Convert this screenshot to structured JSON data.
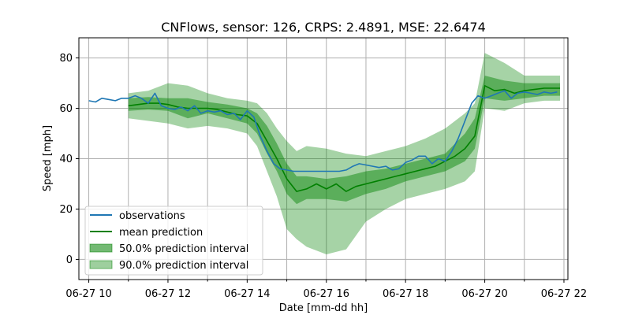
{
  "chart_data": {
    "type": "line",
    "title": "CNFlows, sensor: 126, CRPS: 2.4891, MSE: 22.6474",
    "xlabel": "Date [mm-dd hh]",
    "ylabel": "Speed [mph]",
    "xlim": [
      9.75,
      22.1
    ],
    "ylim": [
      -8,
      88
    ],
    "x_ticks": [
      {
        "value": 10,
        "label": "06-27 10"
      },
      {
        "value": 12,
        "label": "06-27 12"
      },
      {
        "value": 14,
        "label": "06-27 14"
      },
      {
        "value": 16,
        "label": "06-27 16"
      },
      {
        "value": 18,
        "label": "06-27 18"
      },
      {
        "value": 20,
        "label": "06-27 20"
      },
      {
        "value": 22,
        "label": "06-27 22"
      }
    ],
    "x_minor_gridlines": [
      11,
      13,
      15,
      17,
      19,
      21
    ],
    "y_ticks": [
      {
        "value": 0,
        "label": "0"
      },
      {
        "value": 20,
        "label": "20"
      },
      {
        "value": 40,
        "label": "40"
      },
      {
        "value": 60,
        "label": "60"
      },
      {
        "value": 80,
        "label": "80"
      }
    ],
    "grid": true,
    "legend_position": "lower-left",
    "colors": {
      "observations": "#1f77b4",
      "mean": "#008000",
      "band": "#008000"
    },
    "legend": [
      {
        "key": "observations",
        "label": "observations",
        "kind": "line"
      },
      {
        "key": "mean",
        "label": "mean prediction",
        "kind": "line"
      },
      {
        "key": "band50",
        "label": "50.0% prediction interval",
        "kind": "patch"
      },
      {
        "key": "band90",
        "label": "90.0% prediction interval",
        "kind": "patch"
      }
    ],
    "observations": {
      "x": [
        10.0,
        10.17,
        10.33,
        10.5,
        10.67,
        10.83,
        11.0,
        11.17,
        11.33,
        11.5,
        11.67,
        11.83,
        12.0,
        12.17,
        12.33,
        12.5,
        12.67,
        12.83,
        13.0,
        13.17,
        13.33,
        13.5,
        13.67,
        13.83,
        14.0,
        14.17,
        14.33,
        14.5,
        14.67,
        14.83,
        15.0,
        15.17,
        15.33,
        15.5,
        15.67,
        15.83,
        16.0,
        16.17,
        16.33,
        16.5,
        16.67,
        16.83,
        17.0,
        17.17,
        17.33,
        17.5,
        17.67,
        17.83,
        18.0,
        18.17,
        18.33,
        18.5,
        18.67,
        18.83,
        19.0,
        19.17,
        19.33,
        19.5,
        19.67,
        19.83,
        20.0,
        20.17,
        20.33,
        20.5,
        20.67,
        20.83,
        21.0,
        21.17,
        21.33,
        21.5,
        21.67,
        21.83
      ],
      "y": [
        63,
        62.5,
        64,
        63.5,
        63,
        64,
        64,
        65,
        64,
        62,
        66,
        61,
        60,
        59.5,
        60.5,
        59,
        61,
        58,
        59,
        58.5,
        59,
        57.5,
        58,
        55.5,
        59,
        56.5,
        49,
        43,
        38,
        36,
        35.5,
        35,
        35,
        35,
        35,
        35,
        35,
        35,
        35,
        35.5,
        37,
        38,
        37.5,
        37,
        36.5,
        37,
        35.5,
        36,
        38.5,
        39.5,
        41,
        41,
        38,
        40,
        39,
        43,
        48,
        55,
        62,
        65,
        64,
        65,
        66,
        67,
        64,
        66,
        66.5,
        66,
        65.5,
        66.5,
        66,
        66.5
      ]
    },
    "mean_prediction": {
      "x": [
        11.0,
        11.25,
        11.5,
        11.75,
        12.0,
        12.25,
        12.5,
        12.75,
        13.0,
        13.25,
        13.5,
        13.75,
        14.0,
        14.25,
        14.5,
        14.75,
        15.0,
        15.25,
        15.5,
        15.75,
        16.0,
        16.25,
        16.5,
        16.75,
        17.0,
        17.25,
        17.5,
        17.75,
        18.0,
        18.25,
        18.5,
        18.75,
        19.0,
        19.25,
        19.5,
        19.75,
        20.0,
        20.25,
        20.5,
        20.75,
        21.0,
        21.25,
        21.5,
        21.75,
        21.9
      ],
      "y": [
        61,
        61.5,
        62,
        62,
        61.5,
        60.5,
        60,
        60,
        60,
        59.5,
        58.5,
        57.5,
        57,
        54,
        47,
        40,
        32,
        27,
        28,
        30,
        28,
        30,
        27,
        29,
        30,
        31,
        32,
        33,
        34,
        35,
        36,
        37,
        39,
        41,
        44,
        49,
        69,
        67,
        67.5,
        66,
        67,
        67.5,
        68,
        68,
        68
      ]
    },
    "interval_50": {
      "x": [
        11.0,
        11.5,
        12.0,
        12.5,
        13.0,
        13.5,
        14.0,
        14.25,
        14.5,
        14.75,
        15.0,
        15.25,
        15.5,
        16.0,
        16.5,
        17.0,
        17.5,
        18.0,
        18.5,
        19.0,
        19.5,
        19.75,
        20.0,
        20.5,
        21.0,
        21.5,
        21.9
      ],
      "lower": [
        59,
        59.5,
        59,
        56,
        58,
        56,
        54,
        50,
        42,
        35,
        26,
        22,
        24,
        24,
        23,
        26,
        28,
        31,
        33,
        35,
        39,
        44,
        64,
        63,
        64,
        65,
        65
      ],
      "upper": [
        64,
        64.5,
        64,
        64,
        62.5,
        61.5,
        60,
        58,
        53,
        46,
        38,
        33,
        33,
        32,
        33,
        35,
        36,
        38,
        40,
        42,
        50,
        56,
        73,
        71,
        70,
        70,
        70
      ]
    },
    "interval_90": {
      "x": [
        11.0,
        11.5,
        12.0,
        12.5,
        13.0,
        13.5,
        14.0,
        14.25,
        14.5,
        14.75,
        15.0,
        15.25,
        15.5,
        16.0,
        16.5,
        17.0,
        17.5,
        18.0,
        18.5,
        19.0,
        19.5,
        19.75,
        20.0,
        20.5,
        21.0,
        21.5,
        21.9
      ],
      "lower": [
        56,
        55,
        54,
        52,
        53,
        52,
        50,
        45,
        35,
        25,
        12,
        8,
        5,
        2,
        4,
        15,
        20,
        24,
        26,
        28,
        31,
        35,
        60,
        59,
        62,
        63,
        63
      ],
      "upper": [
        66,
        67,
        70,
        69,
        66,
        64,
        63,
        62,
        58,
        52,
        47,
        43,
        45,
        44,
        42,
        41,
        43,
        45,
        48,
        52,
        58,
        62,
        82,
        78,
        73,
        73,
        73
      ]
    }
  }
}
